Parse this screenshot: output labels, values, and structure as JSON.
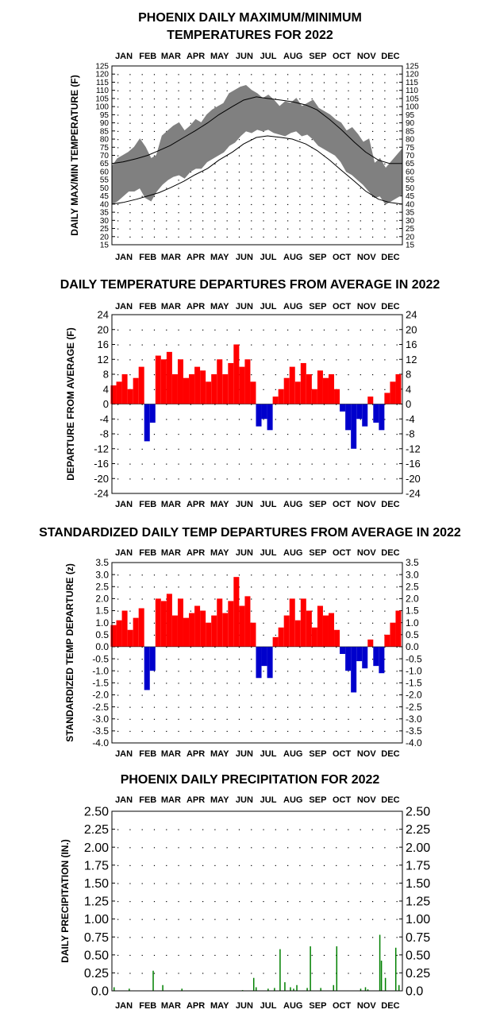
{
  "months": [
    "JAN",
    "FEB",
    "MAR",
    "APR",
    "MAY",
    "JUN",
    "JUL",
    "AUG",
    "SEP",
    "OCT",
    "NOV",
    "DEC"
  ],
  "chart_data": [
    {
      "id": "maxmin",
      "type": "line",
      "title_lines": [
        "PHOENIX DAILY MAXIMUM/MINIMUM",
        "TEMPERATURES FOR 2022"
      ],
      "ylabel": "DAILY MAX/MIN TEMPERATURE (F)",
      "xlim": [
        1,
        365
      ],
      "ylim": [
        15,
        125
      ],
      "yticks": [
        "125",
        "120",
        "115",
        "110",
        "105",
        "100",
        "95",
        "90",
        "85",
        "80",
        "75",
        "70",
        "65",
        "60",
        "55",
        "50",
        "45",
        "40",
        "35",
        "30",
        "25",
        "20",
        "15"
      ],
      "grid": true,
      "series": [
        {
          "role": "observed-max",
          "color": "#808080",
          "x": [
            1,
            8,
            15,
            22,
            29,
            36,
            43,
            50,
            57,
            64,
            71,
            78,
            85,
            92,
            99,
            106,
            113,
            120,
            127,
            134,
            141,
            148,
            155,
            162,
            169,
            176,
            183,
            190,
            197,
            204,
            211,
            218,
            225,
            232,
            239,
            246,
            253,
            260,
            267,
            274,
            281,
            288,
            295,
            302,
            309,
            316,
            323,
            330,
            337,
            344,
            351,
            358,
            365
          ],
          "y": [
            63,
            68,
            70,
            72,
            75,
            80,
            75,
            68,
            70,
            82,
            85,
            88,
            90,
            85,
            88,
            92,
            90,
            95,
            98,
            100,
            102,
            108,
            110,
            112,
            113,
            110,
            108,
            105,
            107,
            104,
            100,
            103,
            102,
            105,
            100,
            102,
            104,
            99,
            97,
            95,
            92,
            90,
            85,
            87,
            83,
            78,
            80,
            65,
            68,
            62,
            66,
            70,
            74
          ]
        },
        {
          "role": "observed-min",
          "color": "#808080",
          "x": [
            1,
            8,
            15,
            22,
            29,
            36,
            43,
            50,
            57,
            64,
            71,
            78,
            85,
            92,
            99,
            106,
            113,
            120,
            127,
            134,
            141,
            148,
            155,
            162,
            169,
            176,
            183,
            190,
            197,
            204,
            211,
            218,
            225,
            232,
            239,
            246,
            253,
            260,
            267,
            274,
            281,
            288,
            295,
            302,
            309,
            316,
            323,
            330,
            337,
            344,
            351,
            358,
            365
          ],
          "y": [
            40,
            42,
            45,
            48,
            48,
            50,
            44,
            42,
            48,
            52,
            55,
            57,
            58,
            56,
            60,
            62,
            62,
            66,
            68,
            70,
            72,
            76,
            78,
            82,
            85,
            84,
            86,
            85,
            86,
            84,
            83,
            82,
            84,
            85,
            82,
            83,
            80,
            76,
            74,
            72,
            70,
            66,
            60,
            58,
            55,
            52,
            48,
            44,
            45,
            40,
            42,
            44,
            46
          ]
        },
        {
          "role": "normal-max",
          "color": "#000000",
          "x": [
            1,
            15,
            32,
            46,
            60,
            74,
            91,
            105,
            121,
            135,
            152,
            166,
            182,
            196,
            213,
            227,
            244,
            258,
            274,
            288,
            305,
            319,
            335,
            349,
            365
          ],
          "y": [
            65,
            66,
            68,
            70,
            73,
            76,
            81,
            85,
            90,
            95,
            100,
            104,
            106,
            105,
            104,
            103,
            101,
            98,
            92,
            86,
            78,
            72,
            67,
            65,
            65
          ]
        },
        {
          "role": "normal-min",
          "color": "#000000",
          "x": [
            1,
            15,
            32,
            46,
            60,
            74,
            91,
            105,
            121,
            135,
            152,
            166,
            182,
            196,
            213,
            227,
            244,
            258,
            274,
            288,
            305,
            319,
            335,
            349,
            365
          ],
          "y": [
            40,
            41,
            43,
            45,
            47,
            50,
            54,
            58,
            62,
            67,
            72,
            77,
            81,
            82,
            81,
            80,
            77,
            73,
            67,
            61,
            54,
            48,
            43,
            41,
            40
          ]
        }
      ]
    },
    {
      "id": "departures",
      "type": "bar",
      "title_lines": [
        "DAILY TEMPERATURE DEPARTURES FROM AVERAGE IN 2022"
      ],
      "ylabel": "DEPARTURE FROM AVERAGE (F)",
      "xlim": [
        1,
        365
      ],
      "ylim": [
        -24,
        24
      ],
      "yticks": [
        "24",
        "20",
        "16",
        "12",
        "8",
        "4",
        "0",
        "-4",
        "-8",
        "-12",
        "-16",
        "-20",
        "-24"
      ],
      "grid": true,
      "positive_color": "#ff0000",
      "negative_color": "#0000cc",
      "x": [
        3,
        10,
        17,
        24,
        31,
        38,
        45,
        52,
        59,
        66,
        73,
        80,
        87,
        94,
        101,
        108,
        115,
        122,
        129,
        136,
        143,
        150,
        157,
        164,
        171,
        178,
        185,
        192,
        199,
        206,
        213,
        220,
        227,
        234,
        241,
        248,
        255,
        262,
        269,
        276,
        283,
        290,
        297,
        304,
        311,
        318,
        325,
        332,
        339,
        346,
        353,
        360
      ],
      "values": [
        5,
        6,
        8,
        4,
        7,
        10,
        -10,
        -5,
        13,
        12,
        14,
        8,
        12,
        7,
        8,
        10,
        9,
        6,
        8,
        12,
        8,
        11,
        16,
        10,
        12,
        6,
        -6,
        -4,
        -7,
        2,
        4,
        7,
        10,
        6,
        11,
        8,
        4,
        9,
        7,
        8,
        4,
        -2,
        -7,
        -12,
        -4,
        -6,
        2,
        -5,
        -7,
        3,
        6,
        8
      ]
    },
    {
      "id": "standardized",
      "type": "bar",
      "title_lines": [
        "STANDARDIZED DAILY TEMP DEPARTURES FROM AVERAGE IN 2022"
      ],
      "ylabel": "STANDARDIZED TEMP DEPARTURE (z)",
      "xlim": [
        1,
        365
      ],
      "ylim": [
        -4.0,
        3.5
      ],
      "yticks": [
        "3.5",
        "3.0",
        "2.5",
        "2.0",
        "1.5",
        "1.0",
        "0.5",
        "0.0",
        "-0.5",
        "-1.0",
        "-1.5",
        "-2.0",
        "-2.5",
        "-3.0",
        "-3.5",
        "-4.0"
      ],
      "grid": true,
      "positive_color": "#ff0000",
      "negative_color": "#0000cc",
      "x": [
        3,
        10,
        17,
        24,
        31,
        38,
        45,
        52,
        59,
        66,
        73,
        80,
        87,
        94,
        101,
        108,
        115,
        122,
        129,
        136,
        143,
        150,
        157,
        164,
        171,
        178,
        185,
        192,
        199,
        206,
        213,
        220,
        227,
        234,
        241,
        248,
        255,
        262,
        269,
        276,
        283,
        290,
        297,
        304,
        311,
        318,
        325,
        332,
        339,
        346,
        353,
        360
      ],
      "values": [
        0.9,
        1.1,
        1.5,
        0.7,
        1.2,
        1.6,
        -1.8,
        -1.0,
        2.0,
        1.9,
        2.2,
        1.3,
        2.0,
        1.2,
        1.4,
        1.7,
        1.5,
        1.0,
        1.3,
        2.0,
        1.4,
        1.9,
        2.9,
        1.7,
        2.1,
        1.0,
        -1.3,
        -0.8,
        -1.3,
        0.4,
        0.8,
        1.3,
        2.0,
        1.1,
        2.0,
        1.5,
        0.8,
        1.7,
        1.3,
        1.4,
        0.7,
        -0.3,
        -1.0,
        -1.9,
        -0.6,
        -0.9,
        0.3,
        -0.8,
        -1.1,
        0.5,
        1.0,
        1.5
      ]
    },
    {
      "id": "precip",
      "type": "bar",
      "title_lines": [
        "PHOENIX DAILY PRECIPITATION FOR 2022"
      ],
      "ylabel": "DAILY PRECIPITATION (IN.)",
      "xlim": [
        1,
        365
      ],
      "ylim": [
        0,
        2.5
      ],
      "yticks": [
        "2.50",
        "2.25",
        "2.00",
        "1.75",
        "1.50",
        "1.25",
        "1.00",
        "0.75",
        "0.50",
        "0.25",
        "0.0"
      ],
      "grid": true,
      "bar_color": "#008000",
      "x": [
        3,
        22,
        52,
        64,
        88,
        164,
        178,
        181,
        196,
        204,
        211,
        217,
        224,
        228,
        232,
        245,
        249,
        262,
        278,
        282,
        312,
        318,
        321,
        336,
        338,
        343,
        356,
        360
      ],
      "values": [
        0.05,
        0.03,
        0.28,
        0.08,
        0.03,
        0.01,
        0.18,
        0.05,
        0.03,
        0.04,
        0.58,
        0.12,
        0.05,
        0.03,
        0.08,
        0.04,
        0.62,
        0.04,
        0.08,
        0.62,
        0.03,
        0.05,
        0.02,
        0.78,
        0.42,
        0.18,
        0.6,
        0.08
      ]
    }
  ]
}
